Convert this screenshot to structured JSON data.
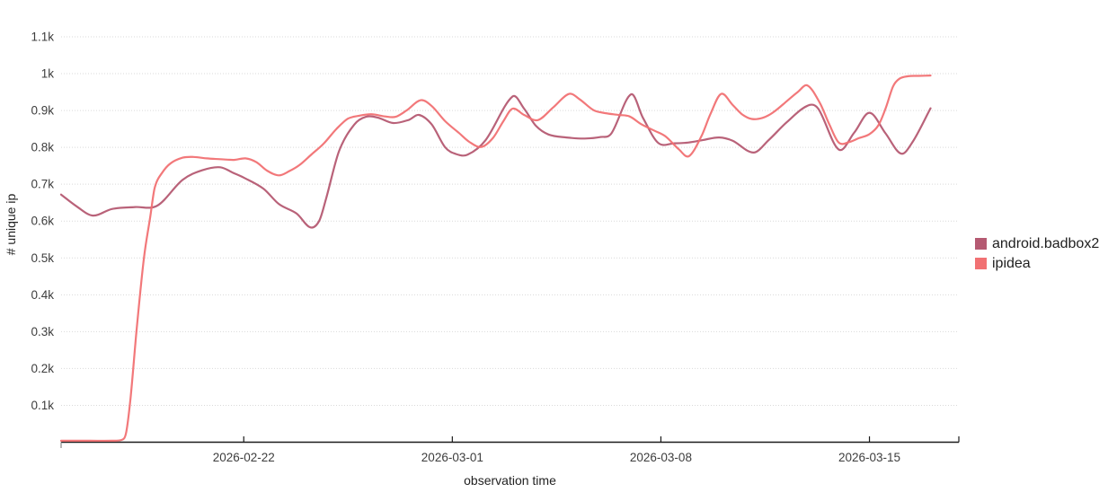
{
  "chart_data": {
    "type": "line",
    "title": "",
    "xlabel": "observation time",
    "ylabel": "# unique ip",
    "grid": "horizontal-dotted",
    "legend_position": "right",
    "x_axis": {
      "epoch_date": "2026-02-16",
      "domain_days": [
        -0.13,
        30.0
      ],
      "tick_days": [
        6,
        13,
        20,
        27
      ],
      "tick_labels": [
        "2026-02-22",
        "2026-03-01",
        "2026-03-08",
        "2026-03-15"
      ]
    },
    "y_axis": {
      "tick_values": [
        100,
        200,
        300,
        400,
        500,
        600,
        700,
        800,
        900,
        1000,
        1100
      ],
      "tick_labels": [
        "0.1k",
        "0.2k",
        "0.3k",
        "0.4k",
        "0.5k",
        "0.6k",
        "0.7k",
        "0.8k",
        "0.9k",
        "1k",
        "1.1k"
      ],
      "max_value": 1100
    },
    "series": [
      {
        "name": "android.badbox2",
        "color": "#b55a72",
        "points": [
          [
            -0.13,
            672
          ],
          [
            0.39,
            640
          ],
          [
            0.93,
            615
          ],
          [
            1.59,
            633
          ],
          [
            2.35,
            638
          ],
          [
            3.1,
            642
          ],
          [
            3.95,
            712
          ],
          [
            4.61,
            738
          ],
          [
            5.21,
            746
          ],
          [
            5.67,
            730
          ],
          [
            6,
            718
          ],
          [
            6.66,
            688
          ],
          [
            7.18,
            646
          ],
          [
            7.78,
            620
          ],
          [
            8.23,
            583
          ],
          [
            8.53,
            600
          ],
          [
            8.77,
            663
          ],
          [
            9.2,
            790
          ],
          [
            9.71,
            862
          ],
          [
            10.1,
            883
          ],
          [
            10.49,
            881
          ],
          [
            11.01,
            866
          ],
          [
            11.55,
            875
          ],
          [
            11.88,
            888
          ],
          [
            12.31,
            862
          ],
          [
            12.76,
            800
          ],
          [
            13.12,
            782
          ],
          [
            13.51,
            780
          ],
          [
            14.12,
            820
          ],
          [
            15.02,
            938
          ],
          [
            15.41,
            905
          ],
          [
            15.81,
            858
          ],
          [
            16.23,
            835
          ],
          [
            16.83,
            827
          ],
          [
            17.44,
            824
          ],
          [
            17.98,
            828
          ],
          [
            18.34,
            838
          ],
          [
            19,
            944
          ],
          [
            19.4,
            880
          ],
          [
            19.91,
            812
          ],
          [
            20.45,
            811
          ],
          [
            20.91,
            813
          ],
          [
            21.42,
            820
          ],
          [
            21.96,
            827
          ],
          [
            22.41,
            818
          ],
          [
            23.11,
            786
          ],
          [
            23.62,
            820
          ],
          [
            24.22,
            868
          ],
          [
            24.92,
            913
          ],
          [
            25.28,
            905
          ],
          [
            25.97,
            794
          ],
          [
            26.49,
            840
          ],
          [
            27,
            894
          ],
          [
            27.54,
            838
          ],
          [
            28.06,
            783
          ],
          [
            28.45,
            815
          ],
          [
            29.05,
            906
          ]
        ]
      },
      {
        "name": "ipidea",
        "color": "#f17173",
        "points": [
          [
            -0.13,
            4
          ],
          [
            0.84,
            4
          ],
          [
            1.59,
            4
          ],
          [
            1.9,
            6
          ],
          [
            2.05,
            25
          ],
          [
            2.2,
            120
          ],
          [
            2.41,
            310
          ],
          [
            2.65,
            500
          ],
          [
            2.86,
            610
          ],
          [
            3.01,
            690
          ],
          [
            3.25,
            730
          ],
          [
            3.55,
            757
          ],
          [
            3.95,
            772
          ],
          [
            4.31,
            774
          ],
          [
            4.76,
            770
          ],
          [
            5.21,
            768
          ],
          [
            5.67,
            766
          ],
          [
            6.06,
            770
          ],
          [
            6.42,
            760
          ],
          [
            6.78,
            737
          ],
          [
            7.18,
            724
          ],
          [
            7.54,
            736
          ],
          [
            7.87,
            752
          ],
          [
            8.29,
            782
          ],
          [
            8.68,
            810
          ],
          [
            9.11,
            850
          ],
          [
            9.5,
            878
          ],
          [
            9.89,
            886
          ],
          [
            10.28,
            890
          ],
          [
            10.74,
            884
          ],
          [
            11.1,
            883
          ],
          [
            11.46,
            900
          ],
          [
            11.94,
            928
          ],
          [
            12.31,
            912
          ],
          [
            12.76,
            871
          ],
          [
            13.21,
            840
          ],
          [
            13.57,
            815
          ],
          [
            13.97,
            801
          ],
          [
            14.36,
            825
          ],
          [
            14.72,
            872
          ],
          [
            15.02,
            905
          ],
          [
            15.41,
            888
          ],
          [
            15.87,
            874
          ],
          [
            16.38,
            908
          ],
          [
            16.92,
            945
          ],
          [
            17.28,
            930
          ],
          [
            17.74,
            901
          ],
          [
            18.13,
            893
          ],
          [
            18.58,
            888
          ],
          [
            18.95,
            884
          ],
          [
            19.34,
            863
          ],
          [
            19.79,
            845
          ],
          [
            20.15,
            830
          ],
          [
            20.6,
            795
          ],
          [
            20.94,
            776
          ],
          [
            21.36,
            830
          ],
          [
            21.66,
            890
          ],
          [
            22.02,
            945
          ],
          [
            22.41,
            915
          ],
          [
            22.72,
            890
          ],
          [
            23.05,
            877
          ],
          [
            23.41,
            880
          ],
          [
            23.77,
            895
          ],
          [
            24.22,
            925
          ],
          [
            24.59,
            950
          ],
          [
            24.92,
            968
          ],
          [
            25.34,
            920
          ],
          [
            25.64,
            865
          ],
          [
            25.97,
            813
          ],
          [
            26.34,
            815
          ],
          [
            26.64,
            825
          ],
          [
            27,
            836
          ],
          [
            27.3,
            860
          ],
          [
            27.54,
            905
          ],
          [
            27.79,
            965
          ],
          [
            28,
            986
          ],
          [
            28.3,
            993
          ],
          [
            28.66,
            994
          ],
          [
            29.05,
            995
          ]
        ]
      }
    ]
  }
}
